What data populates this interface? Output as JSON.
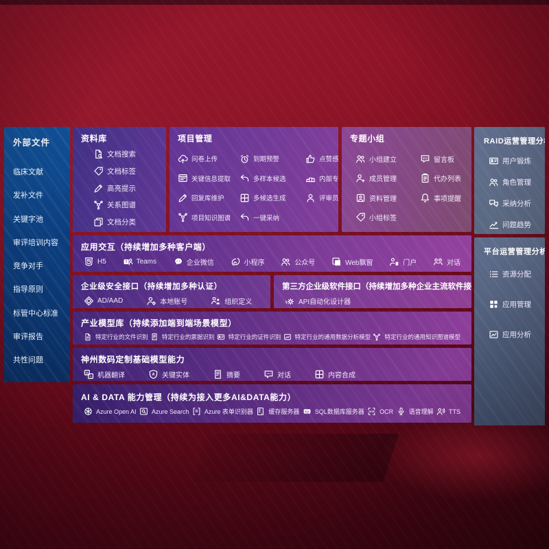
{
  "colors": {
    "background_red": "#7c0e20",
    "panel_blue": "#0c3f80",
    "purple_dark": "#3f2676",
    "purple_bright": "#8f3f9d",
    "panel_slate": "#5d6b89"
  },
  "left_sidebar": {
    "title": "外部文件",
    "items": [
      "临床文献",
      "发补文件",
      "关键字池",
      "审评培训内容",
      "竞争对手",
      "指导原则",
      "标管中心标准",
      "审评报告",
      "共性问题"
    ]
  },
  "repository": {
    "title": "资料库",
    "items": [
      {
        "icon": "doc-search",
        "label": "文档搜索"
      },
      {
        "icon": "tag",
        "label": "文档标签"
      },
      {
        "icon": "pen",
        "label": "高亮提示"
      },
      {
        "icon": "network",
        "label": "关系图谱"
      },
      {
        "icon": "copy",
        "label": "文档分类"
      }
    ]
  },
  "project": {
    "title": "项目管理",
    "items": [
      {
        "icon": "cloud-upload",
        "label": "问卷上传"
      },
      {
        "icon": "browser-extract",
        "label": "关键信息提取"
      },
      {
        "icon": "pen",
        "label": "回复库维护"
      },
      {
        "icon": "network",
        "label": "项目知识图谱"
      },
      {
        "icon": "alarm",
        "label": "到期预警"
      },
      {
        "icon": "reply",
        "label": "多样本候选"
      },
      {
        "icon": "window-split",
        "label": "多候选生成"
      },
      {
        "icon": "reply",
        "label": "一键采纳"
      },
      {
        "icon": "thumb",
        "label": "点赞感谢"
      },
      {
        "icon": "podium",
        "label": "内部专家排名"
      },
      {
        "icon": "person",
        "label": "评审员画像"
      }
    ]
  },
  "topics": {
    "title": "专题小组",
    "items": [
      {
        "icon": "people",
        "label": "小组建立"
      },
      {
        "icon": "person-add",
        "label": "成员管理"
      },
      {
        "icon": "album",
        "label": "资料管理"
      },
      {
        "icon": "tag",
        "label": "小组标签"
      },
      {
        "icon": "bbs",
        "label": "留言板"
      },
      {
        "icon": "clipboard",
        "label": "代办列表"
      },
      {
        "icon": "bell",
        "label": "事项提醒"
      }
    ]
  },
  "raid_panel": {
    "title": "RAID运营管理分析",
    "items": [
      {
        "icon": "id-card",
        "label": "用户锻炼"
      },
      {
        "icon": "people",
        "label": "角色管理"
      },
      {
        "icon": "chat-qa",
        "label": "采纳分析"
      },
      {
        "icon": "trend",
        "label": "问题趋势"
      }
    ]
  },
  "platform_panel": {
    "title": "平台运营管理分析",
    "items": [
      {
        "icon": "list",
        "label": "资源分配"
      },
      {
        "icon": "grid",
        "label": "应用管理"
      },
      {
        "icon": "image-chart",
        "label": "应用分析"
      }
    ]
  },
  "app_interaction": {
    "title": "应用交互（持续增加多种客户端）",
    "items": [
      {
        "icon": "html5",
        "label": "H5"
      },
      {
        "icon": "teams",
        "label": "Teams"
      },
      {
        "icon": "wechat",
        "label": "企业微信"
      },
      {
        "icon": "miniprogram",
        "label": "小程序"
      },
      {
        "icon": "people",
        "label": "公众号"
      },
      {
        "icon": "window",
        "label": "Web飘窗"
      },
      {
        "icon": "portal",
        "label": "门户"
      },
      {
        "icon": "dialog",
        "label": "对话"
      }
    ]
  },
  "security_api": {
    "title": "企业级安全接口（持续增加多种认证）",
    "items": [
      {
        "icon": "diamond",
        "label": "AD/AAD"
      },
      {
        "icon": "person-gear",
        "label": "本地账号"
      },
      {
        "icon": "org",
        "label": "组织定义"
      }
    ]
  },
  "third_party_api": {
    "title": "第三方企业级软件接口（持续增加多种企业主流软件接口）",
    "items": [
      {
        "icon": "api-gear",
        "label": "API自动化设计器"
      }
    ]
  },
  "industry_models": {
    "title": "产业模型库（持续添加端到端场景模型）",
    "items": [
      {
        "icon": "doc",
        "label": "特定行业的文件识别"
      },
      {
        "icon": "receipt",
        "label": "特定行业的票据识别"
      },
      {
        "icon": "id-card",
        "label": "特定行业的证件识别"
      },
      {
        "icon": "image-chart",
        "label": "特定行业的通用数据分析模型"
      },
      {
        "icon": "network",
        "label": "特定行业的通用知识图谱模型"
      }
    ]
  },
  "base_models": {
    "title": "神州数码定制基础模型能力",
    "items": [
      {
        "icon": "translate",
        "label": "机器翻译"
      },
      {
        "icon": "shield-a",
        "label": "关键实体"
      },
      {
        "icon": "summary",
        "label": "摘要"
      },
      {
        "icon": "chat",
        "label": "对话"
      },
      {
        "icon": "window-split",
        "label": "内容合成"
      }
    ]
  },
  "ai_data": {
    "title": "AI & DATA 能力管理（持续为接入更多AI&DATA能力）",
    "items": [
      {
        "icon": "openai",
        "label": "Azure Open AI"
      },
      {
        "icon": "search-window",
        "label": "Azure Search"
      },
      {
        "icon": "form",
        "label": "Azure 表单识别器"
      },
      {
        "icon": "server",
        "label": "缓存服务器"
      },
      {
        "icon": "sql",
        "label": "SQL数据库服务器"
      },
      {
        "icon": "ocr",
        "label": "OCR"
      },
      {
        "icon": "mic",
        "label": "语音理解"
      },
      {
        "icon": "tts",
        "label": "TTS"
      }
    ]
  }
}
